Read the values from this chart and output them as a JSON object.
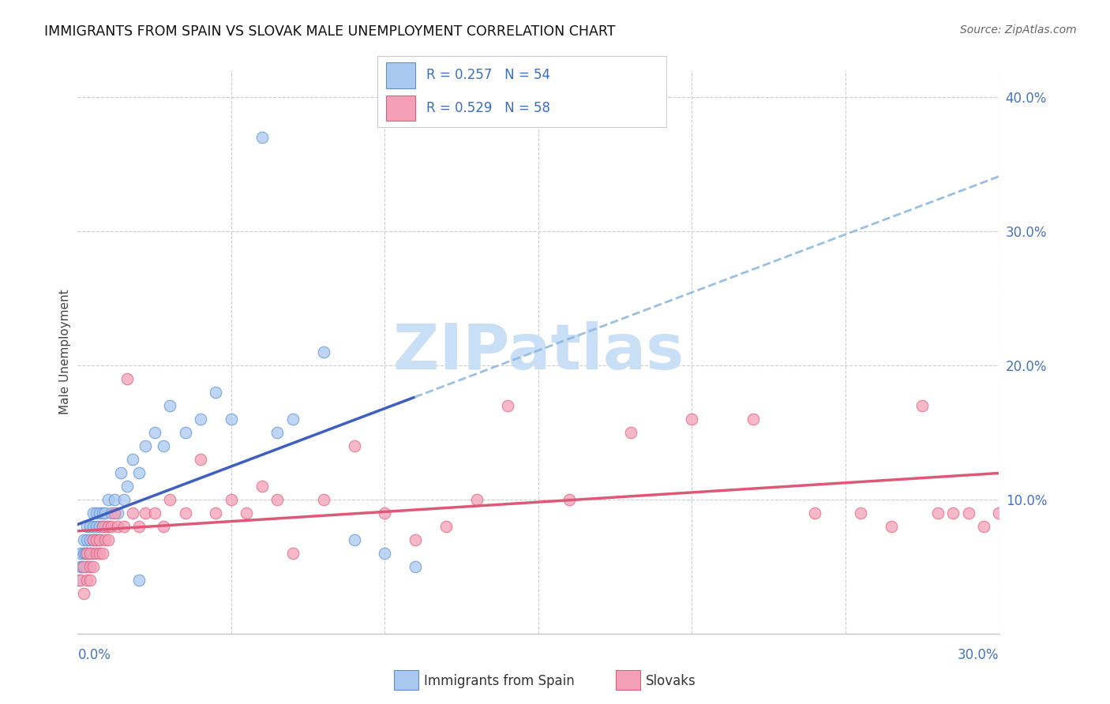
{
  "title": "IMMIGRANTS FROM SPAIN VS SLOVAK MALE UNEMPLOYMENT CORRELATION CHART",
  "source": "Source: ZipAtlas.com",
  "ylabel": "Male Unemployment",
  "right_yticks": [
    "40.0%",
    "30.0%",
    "20.0%",
    "10.0%"
  ],
  "right_ytick_vals": [
    0.4,
    0.3,
    0.2,
    0.1
  ],
  "xlim": [
    0.0,
    0.3
  ],
  "ylim": [
    0.0,
    0.42
  ],
  "color_blue": "#A8C8F0",
  "color_pink": "#F4A0B8",
  "edge_blue": "#6090D0",
  "edge_pink": "#E06080",
  "line_blue_solid": "#4060C0",
  "line_blue_dash": "#90B8E0",
  "line_pink_solid": "#E05878",
  "background": "#FFFFFF",
  "spain_x": [
    0.0005,
    0.001,
    0.001,
    0.0015,
    0.002,
    0.002,
    0.0025,
    0.003,
    0.003,
    0.003,
    0.003,
    0.004,
    0.004,
    0.004,
    0.005,
    0.005,
    0.005,
    0.005,
    0.006,
    0.006,
    0.006,
    0.007,
    0.007,
    0.007,
    0.008,
    0.008,
    0.009,
    0.009,
    0.01,
    0.01,
    0.011,
    0.012,
    0.013,
    0.014,
    0.015,
    0.016,
    0.018,
    0.02,
    0.022,
    0.025,
    0.028,
    0.03,
    0.035,
    0.04,
    0.045,
    0.05,
    0.06,
    0.065,
    0.07,
    0.08,
    0.09,
    0.1,
    0.11,
    0.02
  ],
  "spain_y": [
    0.04,
    0.05,
    0.06,
    0.05,
    0.06,
    0.07,
    0.06,
    0.05,
    0.06,
    0.07,
    0.08,
    0.06,
    0.07,
    0.08,
    0.06,
    0.07,
    0.08,
    0.09,
    0.07,
    0.08,
    0.09,
    0.07,
    0.08,
    0.09,
    0.08,
    0.09,
    0.08,
    0.09,
    0.08,
    0.1,
    0.09,
    0.1,
    0.09,
    0.12,
    0.1,
    0.11,
    0.13,
    0.12,
    0.14,
    0.15,
    0.14,
    0.17,
    0.15,
    0.16,
    0.18,
    0.16,
    0.37,
    0.15,
    0.16,
    0.21,
    0.07,
    0.06,
    0.05,
    0.04
  ],
  "slovak_x": [
    0.001,
    0.002,
    0.002,
    0.003,
    0.003,
    0.004,
    0.004,
    0.004,
    0.005,
    0.005,
    0.006,
    0.006,
    0.007,
    0.007,
    0.008,
    0.008,
    0.009,
    0.01,
    0.01,
    0.011,
    0.012,
    0.013,
    0.015,
    0.016,
    0.018,
    0.02,
    0.022,
    0.025,
    0.028,
    0.03,
    0.035,
    0.04,
    0.045,
    0.05,
    0.055,
    0.06,
    0.065,
    0.07,
    0.08,
    0.09,
    0.1,
    0.11,
    0.12,
    0.13,
    0.14,
    0.16,
    0.18,
    0.2,
    0.22,
    0.24,
    0.255,
    0.265,
    0.275,
    0.28,
    0.285,
    0.29,
    0.295,
    0.3
  ],
  "slovak_y": [
    0.04,
    0.03,
    0.05,
    0.04,
    0.06,
    0.05,
    0.04,
    0.06,
    0.05,
    0.07,
    0.06,
    0.07,
    0.06,
    0.07,
    0.06,
    0.08,
    0.07,
    0.07,
    0.08,
    0.08,
    0.09,
    0.08,
    0.08,
    0.19,
    0.09,
    0.08,
    0.09,
    0.09,
    0.08,
    0.1,
    0.09,
    0.13,
    0.09,
    0.1,
    0.09,
    0.11,
    0.1,
    0.06,
    0.1,
    0.14,
    0.09,
    0.07,
    0.08,
    0.1,
    0.17,
    0.1,
    0.15,
    0.16,
    0.16,
    0.09,
    0.09,
    0.08,
    0.17,
    0.09,
    0.09,
    0.09,
    0.08,
    0.09
  ],
  "legend_line1": "R = 0.257   N = 54",
  "legend_line2": "R = 0.529   N = 58"
}
